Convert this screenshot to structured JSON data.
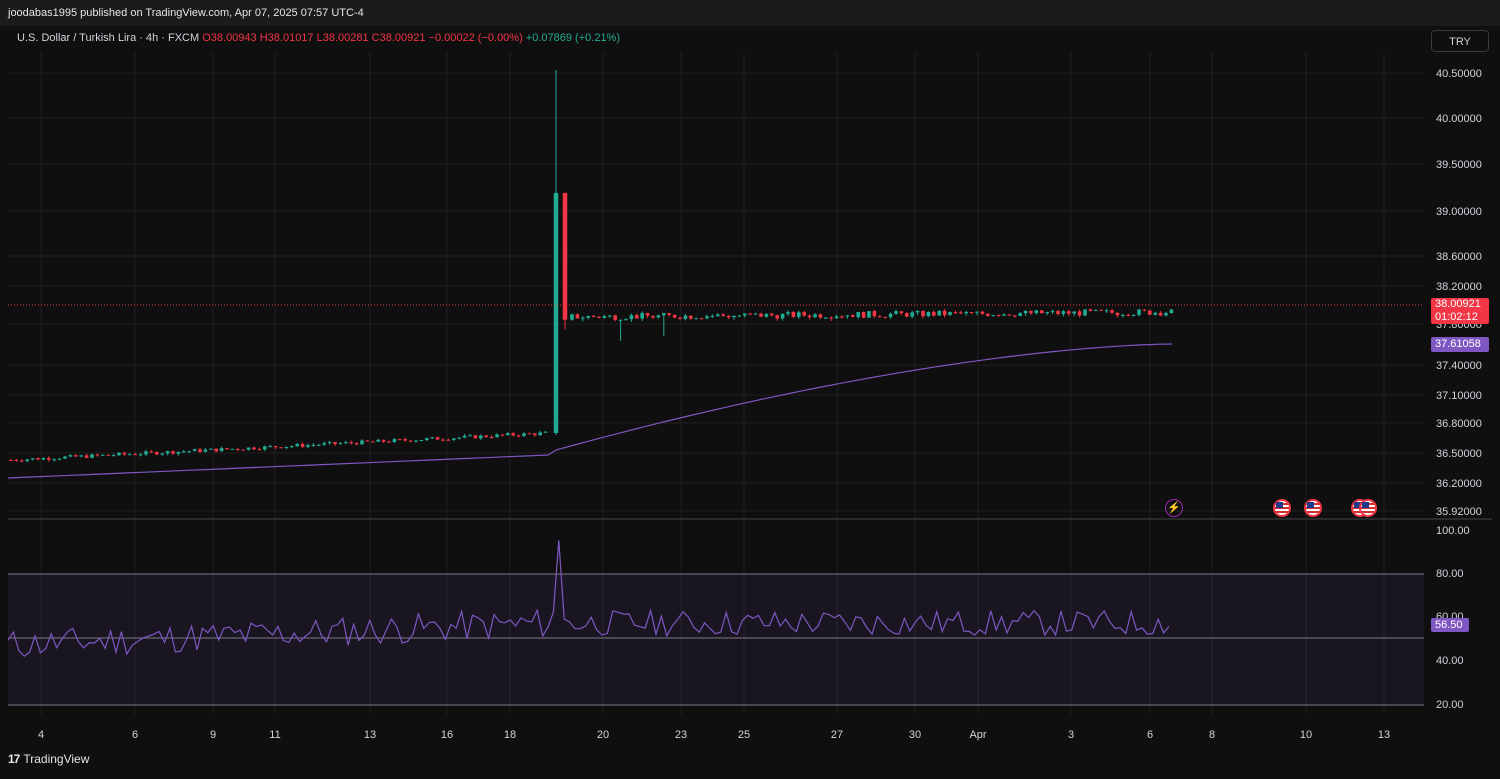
{
  "publisher": "joodabas1995 published on TradingView.com, Apr 07, 2025 07:57 UTC-4",
  "symbol": {
    "title": "U.S. Dollar / Turkish Lira · 4h · FXCM",
    "open": "O38.00943",
    "high": "H38.01017",
    "low": "L38.00281",
    "close": "C38.00921",
    "change": "−0.00022 (−0.00%)",
    "extra": "+0.07869 (+0.21%)"
  },
  "currency_button": "TRY",
  "price_axis": [
    "40.50000",
    "40.00000",
    "39.50000",
    "39.00000",
    "38.60000",
    "38.20000",
    "37.80000",
    "37.40000",
    "37.10000",
    "36.80000",
    "36.50000",
    "36.20000",
    "35.92000"
  ],
  "price_tag": {
    "price": "38.00921",
    "countdown": "01:02:12"
  },
  "ma_tag": "37.61058",
  "rsi_axis": [
    "100.00",
    "80.00",
    "60.00",
    "40.00",
    "20.00"
  ],
  "rsi_tag": "56.50",
  "time_axis": [
    "4",
    "6",
    "9",
    "11",
    "13",
    "16",
    "18",
    "20",
    "23",
    "25",
    "27",
    "30",
    "Apr",
    "3",
    "6",
    "8",
    "10",
    "13"
  ],
  "footer_brand": "TradingView",
  "icons": [
    "lightning-icon",
    "us-flag-icon",
    "us-flag-icon",
    "us-flag-icon"
  ],
  "colors": {
    "up": "#22ab94",
    "down": "#f23645",
    "ma": "#7e57c2",
    "rsi": "#7e57c2",
    "bg": "#0f0f0f"
  },
  "chart_data": {
    "type": "candlestick",
    "symbol": "USD/TRY",
    "interval": "4h",
    "ylim": [
      35.92,
      40.5
    ],
    "phases": [
      {
        "range": "4-18",
        "level": [
          36.45,
          36.75
        ]
      },
      {
        "range": "19",
        "spike_high": 40.5,
        "spike_close": 39.22
      },
      {
        "range": "20-Apr 6",
        "level": [
          37.78,
          38.01
        ]
      }
    ],
    "last_close": 38.00921,
    "ma_last": 37.61058,
    "rsi_last": 56.5,
    "rsi_levels": [
      80,
      50,
      20
    ],
    "rsi_ylim": [
      20,
      100
    ]
  }
}
